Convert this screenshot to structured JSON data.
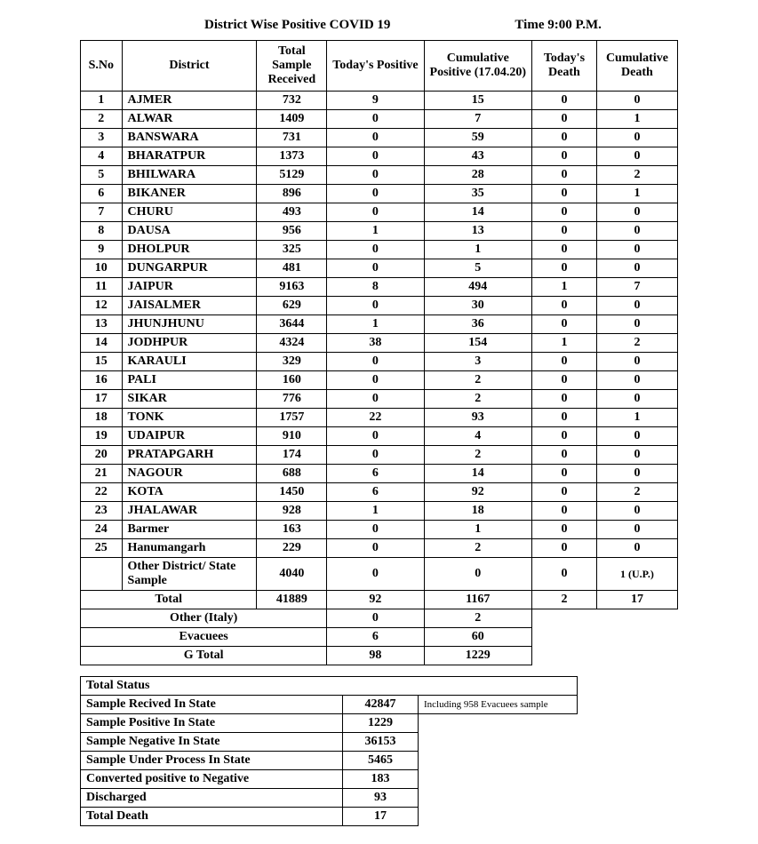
{
  "header": {
    "title": "District Wise Positive COVID 19",
    "time_label": "Time 9:00  P.M."
  },
  "main_table": {
    "columns": [
      "S.No",
      "District",
      "Total Sample Received",
      "Today's Positive",
      "Cumulative Positive (17.04.20)",
      "Today's Death",
      "Cumulative Death"
    ],
    "rows": [
      {
        "sno": "1",
        "district": "AJMER",
        "sample": "732",
        "today_pos": "9",
        "cum_pos": "15",
        "today_death": "0",
        "cum_death": "0"
      },
      {
        "sno": "2",
        "district": "ALWAR",
        "sample": "1409",
        "today_pos": "0",
        "cum_pos": "7",
        "today_death": "0",
        "cum_death": "1"
      },
      {
        "sno": "3",
        "district": "BANSWARA",
        "sample": "731",
        "today_pos": "0",
        "cum_pos": "59",
        "today_death": "0",
        "cum_death": "0"
      },
      {
        "sno": "4",
        "district": "BHARATPUR",
        "sample": "1373",
        "today_pos": "0",
        "cum_pos": "43",
        "today_death": "0",
        "cum_death": "0"
      },
      {
        "sno": "5",
        "district": "BHILWARA",
        "sample": "5129",
        "today_pos": "0",
        "cum_pos": "28",
        "today_death": "0",
        "cum_death": "2"
      },
      {
        "sno": "6",
        "district": "BIKANER",
        "sample": "896",
        "today_pos": "0",
        "cum_pos": "35",
        "today_death": "0",
        "cum_death": "1"
      },
      {
        "sno": "7",
        "district": "CHURU",
        "sample": "493",
        "today_pos": "0",
        "cum_pos": "14",
        "today_death": "0",
        "cum_death": "0"
      },
      {
        "sno": "8",
        "district": "DAUSA",
        "sample": "956",
        "today_pos": "1",
        "cum_pos": "13",
        "today_death": "0",
        "cum_death": "0"
      },
      {
        "sno": "9",
        "district": "DHOLPUR",
        "sample": "325",
        "today_pos": "0",
        "cum_pos": "1",
        "today_death": "0",
        "cum_death": "0"
      },
      {
        "sno": "10",
        "district": "DUNGARPUR",
        "sample": "481",
        "today_pos": "0",
        "cum_pos": "5",
        "today_death": "0",
        "cum_death": "0"
      },
      {
        "sno": "11",
        "district": "JAIPUR",
        "sample": "9163",
        "today_pos": "8",
        "cum_pos": "494",
        "today_death": "1",
        "cum_death": "7"
      },
      {
        "sno": "12",
        "district": "JAISALMER",
        "sample": "629",
        "today_pos": "0",
        "cum_pos": "30",
        "today_death": "0",
        "cum_death": "0"
      },
      {
        "sno": "13",
        "district": "JHUNJHUNU",
        "sample": "3644",
        "today_pos": "1",
        "cum_pos": "36",
        "today_death": "0",
        "cum_death": "0"
      },
      {
        "sno": "14",
        "district": "JODHPUR",
        "sample": "4324",
        "today_pos": "38",
        "cum_pos": "154",
        "today_death": "1",
        "cum_death": "2"
      },
      {
        "sno": "15",
        "district": "KARAULI",
        "sample": "329",
        "today_pos": "0",
        "cum_pos": "3",
        "today_death": "0",
        "cum_death": "0"
      },
      {
        "sno": "16",
        "district": "PALI",
        "sample": "160",
        "today_pos": "0",
        "cum_pos": "2",
        "today_death": "0",
        "cum_death": "0"
      },
      {
        "sno": "17",
        "district": "SIKAR",
        "sample": "776",
        "today_pos": "0",
        "cum_pos": "2",
        "today_death": "0",
        "cum_death": "0"
      },
      {
        "sno": "18",
        "district": "TONK",
        "sample": "1757",
        "today_pos": "22",
        "cum_pos": "93",
        "today_death": "0",
        "cum_death": "1"
      },
      {
        "sno": "19",
        "district": "UDAIPUR",
        "sample": "910",
        "today_pos": "0",
        "cum_pos": "4",
        "today_death": "0",
        "cum_death": "0"
      },
      {
        "sno": "20",
        "district": "PRATAPGARH",
        "sample": "174",
        "today_pos": "0",
        "cum_pos": "2",
        "today_death": "0",
        "cum_death": "0"
      },
      {
        "sno": "21",
        "district": "NAGOUR",
        "sample": "688",
        "today_pos": "6",
        "cum_pos": "14",
        "today_death": "0",
        "cum_death": "0"
      },
      {
        "sno": "22",
        "district": "KOTA",
        "sample": "1450",
        "today_pos": "6",
        "cum_pos": "92",
        "today_death": "0",
        "cum_death": "2"
      },
      {
        "sno": "23",
        "district": "JHALAWAR",
        "sample": "928",
        "today_pos": "1",
        "cum_pos": "18",
        "today_death": "0",
        "cum_death": "0"
      },
      {
        "sno": "24",
        "district": "Barmer",
        "sample": "163",
        "today_pos": "0",
        "cum_pos": "1",
        "today_death": "0",
        "cum_death": "0"
      },
      {
        "sno": "25",
        "district": "Hanumangarh",
        "sample": "229",
        "today_pos": "0",
        "cum_pos": "2",
        "today_death": "0",
        "cum_death": "0"
      }
    ],
    "other_row": {
      "label": "Other District/ State Sample",
      "sample": "4040",
      "today_pos": "0",
      "cum_pos": "0",
      "today_death": "0",
      "cum_death": "1 (U.P.)"
    },
    "total_row": {
      "label": "Total",
      "sample": "41889",
      "today_pos": "92",
      "cum_pos": "1167",
      "today_death": "2",
      "cum_death": "17"
    },
    "extra_rows": [
      {
        "label": "Other (Italy)",
        "today_pos": "0",
        "cum_pos": "2"
      },
      {
        "label": "Evacuees",
        "today_pos": "6",
        "cum_pos": "60"
      },
      {
        "label": "G Total",
        "today_pos": "98",
        "cum_pos": "1229"
      }
    ]
  },
  "status_table": {
    "title": "Total Status",
    "rows": [
      {
        "label": "Sample Recived In State",
        "value": "42847",
        "note": "Including 958 Evacuees sample"
      },
      {
        "label": "Sample Positive In State",
        "value": "1229"
      },
      {
        "label": "Sample Negative In State",
        "value": "36153"
      },
      {
        "label": "Sample Under Process In State",
        "value": "5465"
      },
      {
        "label": "Converted positive to Negative",
        "value": "183"
      },
      {
        "label": "Discharged",
        "value": "93"
      },
      {
        "label": "Total Death",
        "value": "17"
      }
    ]
  },
  "styling": {
    "font_family": "Times New Roman",
    "background_color": "#ffffff",
    "text_color": "#000000",
    "border_color": "#000000",
    "header_fontsize": 15,
    "body_fontsize": 14,
    "note_fontsize": 11
  }
}
